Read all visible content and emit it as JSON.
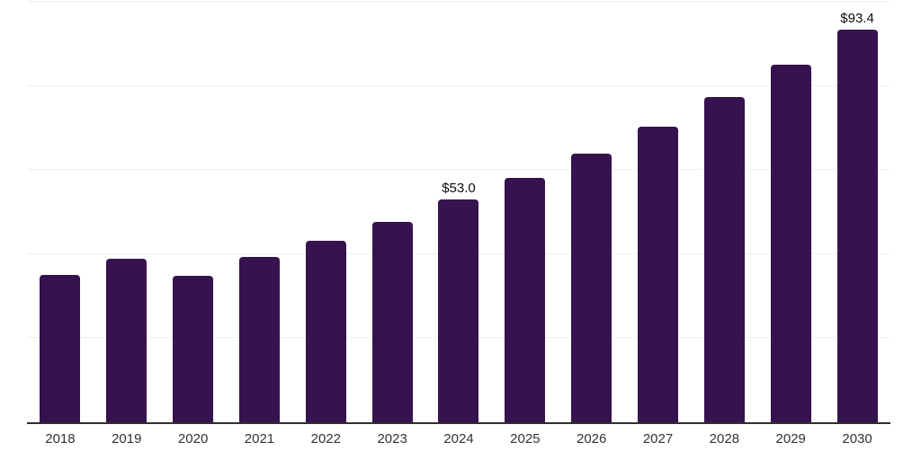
{
  "chart_data": {
    "type": "bar",
    "categories": [
      "2018",
      "2019",
      "2020",
      "2021",
      "2022",
      "2023",
      "2024",
      "2025",
      "2026",
      "2027",
      "2028",
      "2029",
      "2030"
    ],
    "values": [
      35.0,
      38.9,
      34.9,
      39.3,
      43.2,
      47.7,
      53.0,
      58.1,
      63.9,
      70.3,
      77.4,
      85.1,
      93.4
    ],
    "labels": [
      "",
      "",
      "",
      "",
      "",
      "",
      "$53.0",
      "",
      "",
      "",
      "",
      "",
      "$93.4"
    ],
    "title": "",
    "xlabel": "",
    "ylabel": "",
    "ylim": [
      0,
      100
    ],
    "gridline_step": 20,
    "grid": "horizontal",
    "legend": "none",
    "y_tick_labels_visible": false
  },
  "style": {
    "bar_color": "#36124e",
    "grid_color": "#efefef",
    "axis_color": "#2f2f2f",
    "tick_label_color": "#333333",
    "value_label_color": "#0d0d0d",
    "background": "#ffffff"
  }
}
